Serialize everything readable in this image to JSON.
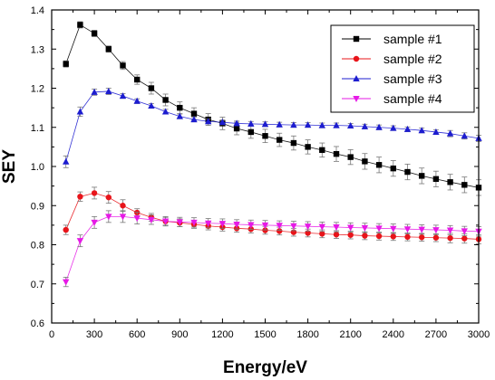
{
  "chart_data": {
    "type": "line",
    "xlabel": "Energy/eV",
    "ylabel": "SEY",
    "xlim": [
      0,
      3000
    ],
    "ylim": [
      0.6,
      1.4
    ],
    "xticks": [
      0,
      300,
      600,
      900,
      1200,
      1500,
      1800,
      2100,
      2400,
      2700,
      3000
    ],
    "yticks": [
      0.6,
      0.7,
      0.8,
      0.9,
      1.0,
      1.1,
      1.2,
      1.3,
      1.4
    ],
    "ytick_labels": [
      "0.6",
      "0.7",
      "0.8",
      "0.9",
      "1.0",
      "1.1",
      "1.2",
      "1.3",
      "1.4"
    ],
    "legend_position": "top-right",
    "grid": false,
    "x": [
      100,
      200,
      300,
      400,
      500,
      600,
      700,
      800,
      900,
      1000,
      1100,
      1200,
      1300,
      1400,
      1500,
      1600,
      1700,
      1800,
      1900,
      2000,
      2100,
      2200,
      2300,
      2400,
      2500,
      2600,
      2700,
      2800,
      2900,
      3000
    ],
    "series": [
      {
        "name": "sample #1",
        "color": "#000000",
        "marker": "square",
        "values": [
          1.262,
          1.362,
          1.34,
          1.3,
          1.258,
          1.222,
          1.2,
          1.17,
          1.15,
          1.135,
          1.12,
          1.11,
          1.097,
          1.088,
          1.078,
          1.068,
          1.06,
          1.05,
          1.042,
          1.032,
          1.024,
          1.013,
          1.004,
          0.995,
          0.986,
          0.976,
          0.968,
          0.96,
          0.953,
          0.946
        ],
        "errors": [
          0.008,
          0.008,
          0.008,
          0.008,
          0.01,
          0.012,
          0.015,
          0.015,
          0.015,
          0.015,
          0.015,
          0.016,
          0.016,
          0.016,
          0.017,
          0.017,
          0.018,
          0.018,
          0.018,
          0.019,
          0.019,
          0.02,
          0.02,
          0.02,
          0.02,
          0.02,
          0.02,
          0.02,
          0.02,
          0.02
        ]
      },
      {
        "name": "sample #2",
        "color": "#e8141a",
        "marker": "circle",
        "values": [
          0.838,
          0.923,
          0.932,
          0.921,
          0.9,
          0.882,
          0.87,
          0.86,
          0.856,
          0.852,
          0.848,
          0.845,
          0.842,
          0.84,
          0.837,
          0.835,
          0.832,
          0.83,
          0.828,
          0.826,
          0.825,
          0.823,
          0.822,
          0.821,
          0.82,
          0.819,
          0.818,
          0.817,
          0.816,
          0.814
        ],
        "errors": [
          0.012,
          0.012,
          0.015,
          0.015,
          0.015,
          0.01,
          0.01,
          0.01,
          0.01,
          0.01,
          0.01,
          0.01,
          0.01,
          0.01,
          0.01,
          0.01,
          0.01,
          0.01,
          0.01,
          0.01,
          0.01,
          0.01,
          0.01,
          0.01,
          0.01,
          0.01,
          0.01,
          0.012,
          0.012,
          0.012
        ]
      },
      {
        "name": "sample #3",
        "color": "#1c1ccf",
        "marker": "triangle-up",
        "values": [
          1.012,
          1.14,
          1.19,
          1.192,
          1.18,
          1.167,
          1.155,
          1.14,
          1.128,
          1.12,
          1.115,
          1.113,
          1.11,
          1.109,
          1.108,
          1.107,
          1.106,
          1.106,
          1.105,
          1.105,
          1.104,
          1.102,
          1.1,
          1.098,
          1.095,
          1.092,
          1.088,
          1.084,
          1.078,
          1.072
        ],
        "errors": [
          0.015,
          0.012,
          0.008,
          0.008,
          0.006,
          0.006,
          0.006,
          0.006,
          0.006,
          0.006,
          0.006,
          0.006,
          0.006,
          0.006,
          0.006,
          0.006,
          0.006,
          0.006,
          0.006,
          0.006,
          0.006,
          0.006,
          0.006,
          0.006,
          0.006,
          0.006,
          0.006,
          0.008,
          0.008,
          0.008
        ]
      },
      {
        "name": "sample #4",
        "color": "#e619e6",
        "marker": "triangle-down",
        "values": [
          0.705,
          0.81,
          0.857,
          0.872,
          0.872,
          0.868,
          0.864,
          0.86,
          0.858,
          0.857,
          0.855,
          0.854,
          0.852,
          0.851,
          0.85,
          0.849,
          0.848,
          0.847,
          0.846,
          0.845,
          0.844,
          0.843,
          0.842,
          0.841,
          0.84,
          0.839,
          0.838,
          0.837,
          0.835,
          0.834
        ],
        "errors": [
          0.012,
          0.015,
          0.015,
          0.015,
          0.015,
          0.015,
          0.012,
          0.012,
          0.012,
          0.012,
          0.012,
          0.012,
          0.012,
          0.012,
          0.012,
          0.012,
          0.012,
          0.012,
          0.012,
          0.012,
          0.012,
          0.012,
          0.012,
          0.012,
          0.012,
          0.012,
          0.012,
          0.012,
          0.012,
          0.012
        ]
      }
    ]
  }
}
